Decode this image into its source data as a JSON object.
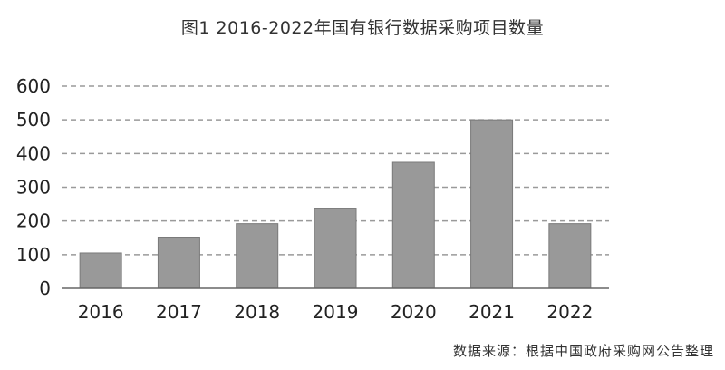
{
  "chart_data": {
    "type": "bar",
    "title": "图1 2016-2022年国有银行数据采购项目数量",
    "categories": [
      "2016",
      "2017",
      "2018",
      "2019",
      "2020",
      "2021",
      "2022"
    ],
    "values": [
      105,
      152,
      192,
      238,
      374,
      500,
      192
    ],
    "ylim": [
      0,
      600
    ],
    "yticks": [
      0,
      100,
      200,
      300,
      400,
      500,
      600
    ],
    "grid": true,
    "legend": "none",
    "bar_color": "#999999",
    "bar_border_color": "#7a7a7a",
    "grid_color": "#9a9a9a",
    "source": "数据来源：根据中国政府采购网公告整理"
  }
}
